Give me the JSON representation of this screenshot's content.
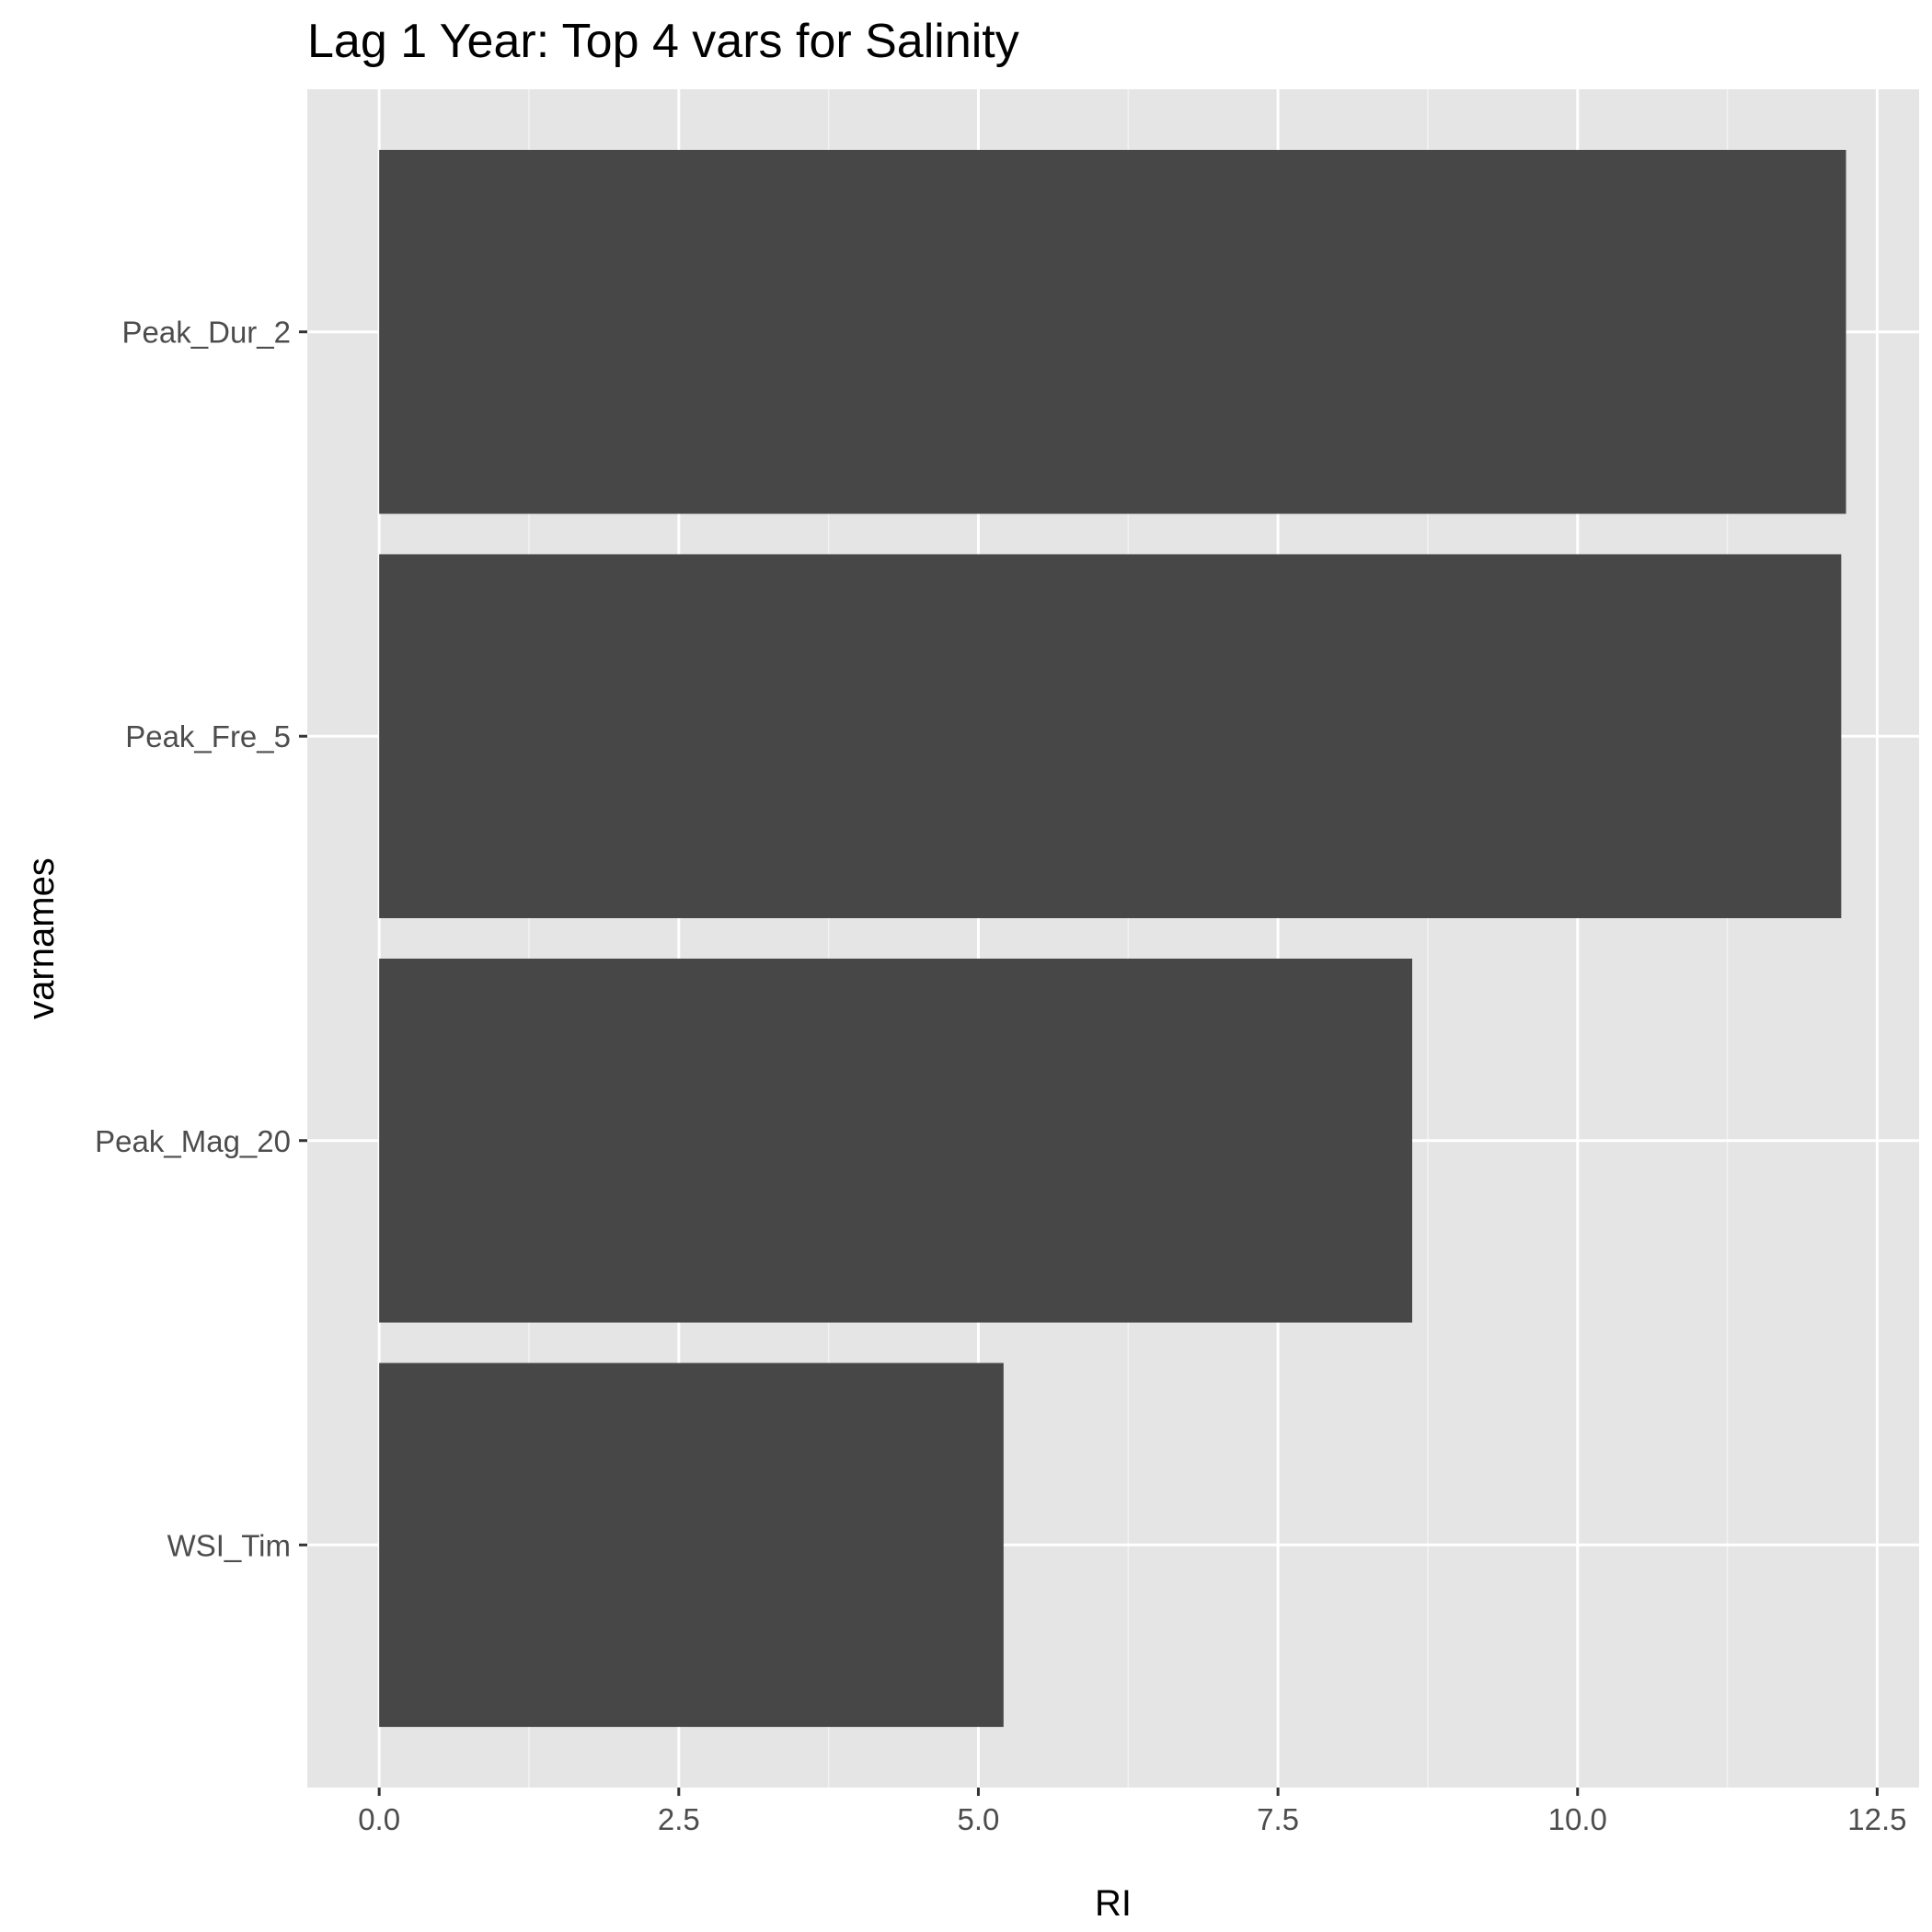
{
  "chart_data": {
    "type": "bar",
    "orientation": "horizontal",
    "title": "Lag 1 Year: Top 4 vars for Salinity",
    "xlabel": "RI",
    "ylabel": "varnames",
    "categories": [
      "Peak_Dur_2",
      "Peak_Fre_5",
      "Peak_Mag_20",
      "WSI_Tim"
    ],
    "values": [
      12.24,
      12.2,
      8.62,
      5.21
    ],
    "xlim": [
      -0.6,
      12.85
    ],
    "xticks": [
      0,
      2.5,
      5,
      7.5,
      10,
      12.5
    ],
    "xtick_labels": [
      "0.0",
      "2.5",
      "5.0",
      "7.5",
      "10.0",
      "12.5"
    ],
    "grid": true,
    "colors": {
      "bar": "#474747",
      "panel": "#e5e5e5",
      "grid_major": "#ffffff",
      "grid_minor": "#f2f2f2",
      "tick_text": "#4d4d4d",
      "text": "#000000"
    }
  }
}
